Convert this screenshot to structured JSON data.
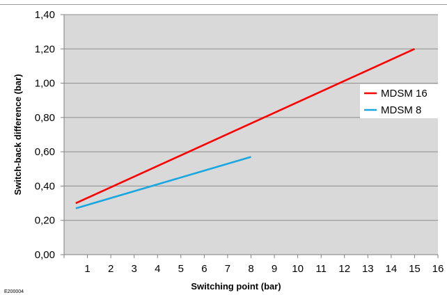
{
  "chart_data": {
    "type": "line",
    "xlabel": "Switching point (bar)",
    "ylabel": "Switch-back difference (bar)",
    "xlim": [
      0,
      16
    ],
    "ylim": [
      0,
      1.4
    ],
    "xticks": [
      "1",
      "2",
      "3",
      "4",
      "5",
      "6",
      "7",
      "8",
      "9",
      "10",
      "11",
      "12",
      "13",
      "14",
      "15",
      "16"
    ],
    "yticks": [
      "0,00",
      "0,20",
      "0,40",
      "0,60",
      "0,80",
      "1,00",
      "1,20",
      "1,40"
    ],
    "grid": true,
    "legend_position": "right",
    "series": [
      {
        "name": "MDSM 16",
        "color": "#ff0000",
        "x": [
          0.5,
          15
        ],
        "y": [
          0.3,
          1.2
        ]
      },
      {
        "name": "MDSM 8",
        "color": "#1aa7e0",
        "x": [
          0.5,
          8
        ],
        "y": [
          0.27,
          0.57
        ]
      }
    ]
  },
  "footnote": "E200004",
  "colors": {
    "plot_background": "#d9d9d9",
    "gridline": "#8c8c8c"
  }
}
